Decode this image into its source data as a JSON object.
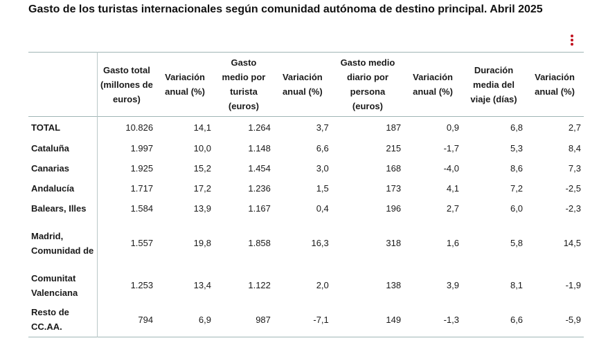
{
  "title": "Gasto de los turistas internacionales según comunidad autónoma de destino principal. Abril 2025",
  "menu_icon": "vertical-ellipsis-icon",
  "accent_color": "#c1121f",
  "headers": [
    "",
    "Gasto total (millones de euros)",
    "Variación anual (%)",
    "Gasto medio por turista (euros)",
    "Variación anual (%)",
    "Gasto medio diario por persona (euros)",
    "Variación anual (%)",
    "Duración media del viaje (días)",
    "Variación anual (%)"
  ],
  "rows": [
    {
      "region": "TOTAL",
      "values": [
        "10.826",
        "14,1",
        "1.264",
        "3,7",
        "187",
        "0,9",
        "6,8",
        "2,7"
      ]
    },
    {
      "region": "Cataluña",
      "values": [
        "1.997",
        "10,0",
        "1.148",
        "6,6",
        "215",
        "-1,7",
        "5,3",
        "8,4"
      ]
    },
    {
      "region": "Canarias",
      "values": [
        "1.925",
        "15,2",
        "1.454",
        "3,0",
        "168",
        "-4,0",
        "8,6",
        "7,3"
      ]
    },
    {
      "region": "Andalucía",
      "values": [
        "1.717",
        "17,2",
        "1.236",
        "1,5",
        "173",
        "4,1",
        "7,2",
        "-2,5"
      ]
    },
    {
      "region": "Balears, Illes",
      "values": [
        "1.584",
        "13,9",
        "1.167",
        "0,4",
        "196",
        "2,7",
        "6,0",
        "-2,3"
      ]
    },
    {
      "region": "Madrid, Comunidad de",
      "values": [
        "1.557",
        "19,8",
        "1.858",
        "16,3",
        "318",
        "1,6",
        "5,8",
        "14,5"
      ]
    },
    {
      "region": "Comunitat Valenciana",
      "values": [
        "1.253",
        "13,4",
        "1.122",
        "2,0",
        "138",
        "3,9",
        "8,1",
        "-1,9"
      ]
    },
    {
      "region": "Resto de CC.AA.",
      "values": [
        "794",
        "6,9",
        "987",
        "-7,1",
        "149",
        "-1,3",
        "6,6",
        "-5,9"
      ]
    }
  ]
}
